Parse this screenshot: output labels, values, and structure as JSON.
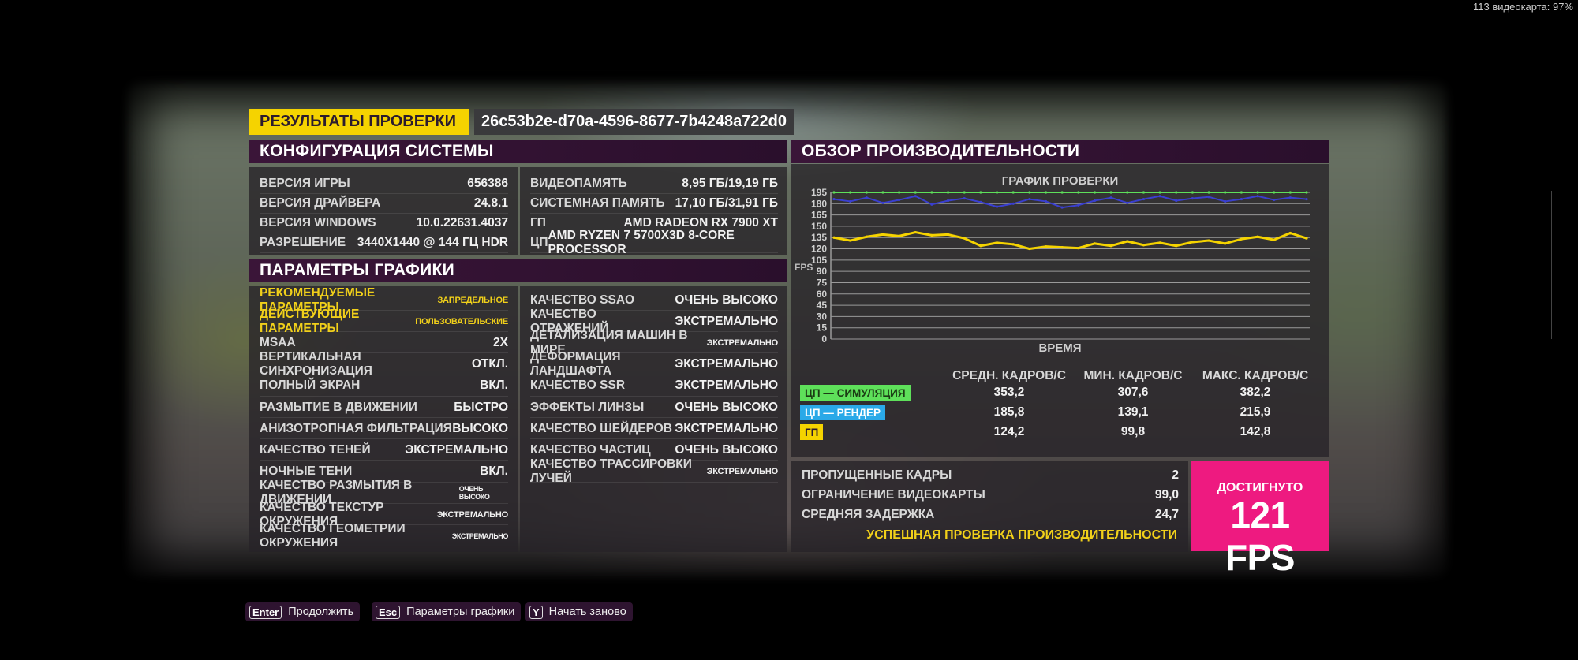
{
  "top_stat": "113 видеокарта: 97%",
  "results_tag": "РЕЗУЛЬТАТЫ ПРОВЕРКИ",
  "hash": "26c53b2e-d70a-4596-8677-7b4248a722d0",
  "system": {
    "header": "КОНФИГУРАЦИЯ СИСТЕМЫ",
    "left": [
      {
        "label": "ВЕРСИЯ ИГРЫ",
        "value": "656386"
      },
      {
        "label": "ВЕРСИЯ ДРАЙВЕРА",
        "value": "24.8.1"
      },
      {
        "label": "ВЕРСИЯ WINDOWS",
        "value": "10.0.22631.4037"
      },
      {
        "label": "РАЗРЕШЕНИЕ",
        "value": "3440x1440 @ 144 Гц HDR"
      }
    ],
    "right": [
      {
        "label": "ВИДЕОПАМЯТЬ",
        "value": "8,95 ГБ/19,19 ГБ"
      },
      {
        "label": "СИСТЕМНАЯ ПАМЯТЬ",
        "value": "17,10 ГБ/31,91 ГБ"
      },
      {
        "label": "ГП",
        "value": "AMD Radeon RX 7900 XT"
      },
      {
        "label": "ЦП",
        "value": "AMD Ryzen 7 5700X3D 8-Core Processor"
      }
    ]
  },
  "graphics": {
    "header": "ПАРАМЕТРЫ ГРАФИКИ",
    "left": [
      {
        "label": "РЕКОМЕНДУЕМЫЕ ПАРАМЕТРЫ",
        "value": "ЗАПРЕДЕЛЬНОЕ"
      },
      {
        "label": "ДЕЙСТВУЮЩИЕ ПАРАМЕТРЫ",
        "value": "ПОЛЬЗОВАТЕЛЬСКИЕ"
      },
      {
        "label": "MSAA",
        "value": "2X"
      },
      {
        "label": "ВЕРТИКАЛЬНАЯ СИНХРОНИЗАЦИЯ",
        "value": "ОТКЛ."
      },
      {
        "label": "ПОЛНЫЙ ЭКРАН",
        "value": "ВКЛ."
      },
      {
        "label": "РАЗМЫТИЕ В ДВИЖЕНИИ",
        "value": "БЫСТРО"
      },
      {
        "label": "АНИЗОТРОПНАЯ ФИЛЬТРАЦИЯ",
        "value": "ВЫСОКО"
      },
      {
        "label": "КАЧЕСТВО ТЕНЕЙ",
        "value": "ЭКСТРЕМАЛЬНО"
      },
      {
        "label": "НОЧНЫЕ ТЕНИ",
        "value": "ВКЛ."
      },
      {
        "label": "КАЧЕСТВО РАЗМЫТИЯ В ДВИЖЕНИИ",
        "value": "ОЧЕНЬ ВЫСОКО"
      },
      {
        "label": "КАЧЕСТВО ТЕКСТУР ОКРУЖЕНИЯ",
        "value": "ЭКСТРЕМАЛЬНО"
      },
      {
        "label": "КАЧЕСТВО ГЕОМЕТРИИ ОКРУЖЕНИЯ",
        "value": "ЭКСТРЕМАЛЬНО"
      }
    ],
    "right": [
      {
        "label": "КАЧЕСТВО SSAO",
        "value": "ОЧЕНЬ ВЫСОКО"
      },
      {
        "label": "КАЧЕСТВО ОТРАЖЕНИЙ",
        "value": "ЭКСТРЕМАЛЬНО"
      },
      {
        "label": "ДЕТАЛИЗАЦИЯ МАШИН В МИРЕ",
        "value": "ЭКСТРЕМАЛЬНО"
      },
      {
        "label": "ДЕФОРМАЦИЯ ЛАНДШАФТА",
        "value": "ЭКСТРЕМАЛЬНО"
      },
      {
        "label": "КАЧЕСТВО SSR",
        "value": "ЭКСТРЕМАЛЬНО"
      },
      {
        "label": "ЭФФЕКТЫ ЛИНЗЫ",
        "value": "ОЧЕНЬ ВЫСОКО"
      },
      {
        "label": "КАЧЕСТВО ШЕЙДЕРОВ",
        "value": "ЭКСТРЕМАЛЬНО"
      },
      {
        "label": "КАЧЕСТВО ЧАСТИЦ",
        "value": "ОЧЕНЬ ВЫСОКО"
      },
      {
        "label": "КАЧЕСТВО ТРАССИРОВКИ ЛУЧЕЙ",
        "value": "ЭКСТРЕМАЛЬНО"
      }
    ]
  },
  "performance": {
    "header": "ОБЗОР ПРОИЗВОДИТЕЛЬНОСТИ",
    "columns": [
      "СРЕДН. КАДРОВ/С",
      "МИН. КАДРОВ/С",
      "МАКС. КАДРОВ/С"
    ],
    "rows": [
      {
        "label": "ЦП — СИМУЛЯЦИЯ",
        "color": "#5ee05a",
        "text_color": "#1b3b14",
        "values": [
          "353,2",
          "307,6",
          "382,2"
        ]
      },
      {
        "label": "ЦП — РЕНДЕР",
        "color": "#2aa9e8",
        "text_color": "#ffffff",
        "values": [
          "185,8",
          "139,1",
          "215,9"
        ]
      },
      {
        "label": "ГП",
        "color": "#f5d300",
        "text_color": "#2b1b2e",
        "values": [
          "124,2",
          "99,8",
          "142,8"
        ]
      }
    ],
    "summary": [
      {
        "label": "ПРОПУЩЕННЫЕ КАДРЫ",
        "value": "2"
      },
      {
        "label": "ОГРАНИЧЕНИЕ ВИДЕОКАРТЫ",
        "value": "99,0"
      },
      {
        "label": "СРЕДНЯЯ ЗАДЕРЖКА",
        "value": "24,7"
      }
    ],
    "success": "УСПЕШНАЯ ПРОВЕРКА ПРОИЗВОДИТЕЛЬНОСТИ",
    "achieved_label": "ДОСТИГНУТО",
    "achieved_value": "121 FPS"
  },
  "chart_data": {
    "type": "line",
    "title": "ГРАФИК ПРОВЕРКИ",
    "xlabel": "ВРЕМЯ",
    "ylabel": "FPS",
    "ylim": [
      0,
      195
    ],
    "yticks": [
      0,
      15,
      30,
      45,
      60,
      75,
      90,
      105,
      120,
      135,
      150,
      165,
      180,
      195
    ],
    "grid": true,
    "series": [
      {
        "name": "ЦП — СИМУЛЯЦИЯ",
        "color": "#5ee05a",
        "values": [
          195,
          195,
          195,
          195,
          195,
          195,
          195,
          195,
          195,
          195,
          195,
          195,
          195,
          195,
          195,
          195,
          195,
          195,
          195,
          195,
          195,
          195,
          195,
          195,
          195,
          195,
          195,
          195,
          195,
          195
        ]
      },
      {
        "name": "ЦП — РЕНДЕР",
        "color": "#3a3fd0",
        "values": [
          186,
          183,
          188,
          181,
          185,
          190,
          179,
          184,
          187,
          182,
          176,
          180,
          186,
          183,
          175,
          178,
          184,
          188,
          181,
          186,
          190,
          184,
          187,
          189,
          183,
          186,
          190,
          185,
          188,
          186
        ]
      },
      {
        "name": "ГП",
        "color": "#f5d300",
        "values": [
          135,
          131,
          136,
          139,
          137,
          142,
          138,
          139,
          134,
          124,
          128,
          126,
          120,
          123,
          122,
          121,
          127,
          124,
          130,
          125,
          128,
          124,
          129,
          131,
          127,
          133,
          136,
          132,
          141,
          134
        ]
      }
    ]
  },
  "buttons": [
    {
      "key": "Enter",
      "label": "Продолжить"
    },
    {
      "key": "Esc",
      "label": "Параметры графики"
    },
    {
      "key": "Y",
      "label": "Начать заново"
    }
  ]
}
